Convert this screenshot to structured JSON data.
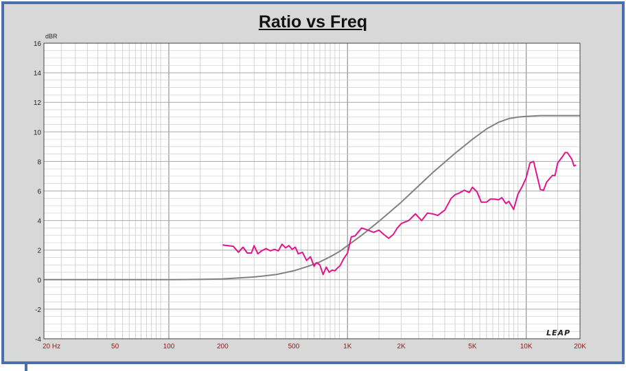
{
  "chart_data": {
    "type": "line",
    "title": "Ratio vs Freq",
    "ylabel": "dBR",
    "xscale": "log",
    "xlim": [
      20,
      20000
    ],
    "ylim": [
      -4,
      16
    ],
    "y_ticks": [
      "16",
      "14",
      "12",
      "10",
      "8",
      "6",
      "4",
      "2",
      "0",
      "-2",
      "-4"
    ],
    "x_ticks": [
      {
        "value": 20,
        "label": "20  Hz"
      },
      {
        "value": 50,
        "label": "50"
      },
      {
        "value": 100,
        "label": "100"
      },
      {
        "value": 200,
        "label": "200"
      },
      {
        "value": 500,
        "label": "500"
      },
      {
        "value": 1000,
        "label": "1K"
      },
      {
        "value": 2000,
        "label": "2K"
      },
      {
        "value": 5000,
        "label": "5K"
      },
      {
        "value": 10000,
        "label": "10K"
      },
      {
        "value": 20000,
        "label": "20K"
      }
    ],
    "grid": true,
    "watermark": "LEAP",
    "series": [
      {
        "color": "#808080",
        "x": [
          20,
          100,
          150,
          200,
          300,
          400,
          500,
          600,
          700,
          800,
          900,
          1000,
          1200,
          1500,
          2000,
          2500,
          3000,
          4000,
          5000,
          6000,
          7000,
          8000,
          9000,
          10000,
          12000,
          15000,
          20000
        ],
        "y": [
          0,
          0,
          0.02,
          0.05,
          0.18,
          0.35,
          0.6,
          0.9,
          1.2,
          1.55,
          1.9,
          2.3,
          3.0,
          3.95,
          5.25,
          6.35,
          7.25,
          8.55,
          9.5,
          10.2,
          10.65,
          10.9,
          11.0,
          11.05,
          11.1,
          11.1,
          11.1
        ]
      },
      {
        "color": "#e0148c",
        "x": [
          200,
          215,
          230,
          245,
          260,
          275,
          290,
          300,
          315,
          330,
          350,
          370,
          390,
          410,
          430,
          450,
          470,
          490,
          510,
          530,
          560,
          590,
          620,
          650,
          670,
          700,
          730,
          760,
          790,
          820,
          850,
          880,
          910,
          950,
          1000,
          1050,
          1100,
          1200,
          1300,
          1400,
          1500,
          1600,
          1700,
          1800,
          1900,
          2000,
          2200,
          2400,
          2600,
          2800,
          3000,
          3200,
          3500,
          3800,
          4000,
          4200,
          4500,
          4800,
          5000,
          5300,
          5600,
          6000,
          6300,
          6600,
          7000,
          7300,
          7700,
          8000,
          8500,
          9000,
          9500,
          10000,
          10500,
          11000,
          12000,
          12500,
          13000,
          14000,
          14500,
          15000,
          16000,
          16500,
          17000,
          18000,
          18500,
          19000
        ],
        "y": [
          2.35,
          2.3,
          2.25,
          1.85,
          2.2,
          1.8,
          1.8,
          2.3,
          1.75,
          1.95,
          2.1,
          1.95,
          2.05,
          1.95,
          2.4,
          2.15,
          2.3,
          2.05,
          2.2,
          1.75,
          1.85,
          1.3,
          1.55,
          0.9,
          1.15,
          1.0,
          0.35,
          0.85,
          0.5,
          0.65,
          0.6,
          0.8,
          0.95,
          1.4,
          1.8,
          2.9,
          2.95,
          3.5,
          3.35,
          3.2,
          3.35,
          3.05,
          2.8,
          3.05,
          3.5,
          3.8,
          4.0,
          4.45,
          4.0,
          4.5,
          4.45,
          4.35,
          4.7,
          5.5,
          5.75,
          5.85,
          6.05,
          5.9,
          6.25,
          5.95,
          5.25,
          5.25,
          5.45,
          5.45,
          5.4,
          5.55,
          5.15,
          5.3,
          4.75,
          5.8,
          6.3,
          6.9,
          7.9,
          8.0,
          6.1,
          6.05,
          6.6,
          7.05,
          7.05,
          7.9,
          8.35,
          8.6,
          8.6,
          8.15,
          7.7,
          7.75
        ]
      }
    ]
  }
}
